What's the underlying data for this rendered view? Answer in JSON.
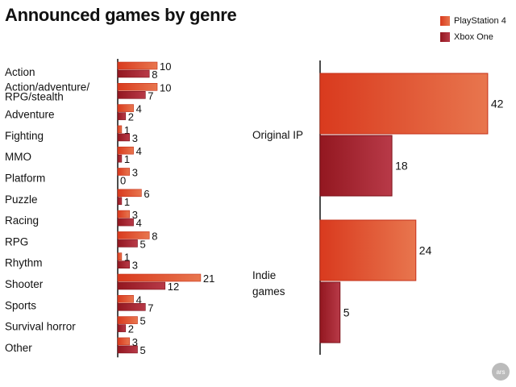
{
  "title": "Announced games by genre",
  "legend": [
    {
      "label": "PlayStation 4",
      "color": "#e2452a"
    },
    {
      "label": "Xbox One",
      "color": "#a8212c"
    }
  ],
  "logo_text": "ars",
  "chart_data": [
    {
      "type": "bar",
      "orientation": "horizontal",
      "title": "Announced games by genre",
      "categories": [
        "Action",
        "Action/adventure/\nRPG/stealth",
        "Adventure",
        "Fighting",
        "MMO",
        "Platform",
        "Puzzle",
        "Racing",
        "RPG",
        "Rhythm",
        "Shooter",
        "Sports",
        "Survival horror",
        "Other"
      ],
      "series": [
        {
          "name": "PlayStation 4",
          "values": [
            10,
            10,
            4,
            1,
            4,
            3,
            6,
            3,
            8,
            1,
            21,
            4,
            5,
            3
          ]
        },
        {
          "name": "Xbox One",
          "values": [
            8,
            7,
            2,
            3,
            1,
            0,
            1,
            4,
            5,
            3,
            12,
            7,
            2,
            5
          ]
        }
      ],
      "grid": false,
      "legend_position": "top-right"
    },
    {
      "type": "bar",
      "orientation": "horizontal",
      "categories": [
        "Original IP",
        "Indie\ngames"
      ],
      "series": [
        {
          "name": "PlayStation 4",
          "values": [
            42,
            24
          ]
        },
        {
          "name": "Xbox One",
          "values": [
            18,
            5
          ]
        }
      ],
      "grid": false
    }
  ]
}
